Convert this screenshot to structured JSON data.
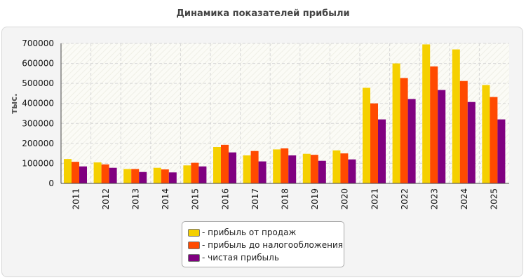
{
  "chart_data": {
    "type": "bar",
    "title": "Динамика показателей прибыли",
    "ylabel": "тыс.",
    "xlabel": "",
    "ylim": [
      0,
      700000
    ],
    "yticks": [
      0,
      100000,
      200000,
      300000,
      400000,
      500000,
      600000,
      700000
    ],
    "grid": true,
    "legend_position": "bottom-center",
    "categories": [
      "2011",
      "2012",
      "2013",
      "2014",
      "2015",
      "2016",
      "2017",
      "2018",
      "2019",
      "2020",
      "2021",
      "2022",
      "2023",
      "2024",
      "2025"
    ],
    "series": [
      {
        "name": "- прибыль от продаж",
        "color": "#f5d000",
        "values": [
          122000,
          105000,
          72000,
          78000,
          90000,
          182000,
          140000,
          170000,
          148000,
          165000,
          478000,
          600000,
          695000,
          670000,
          492000
        ]
      },
      {
        "name": "- прибыль до налогообложения",
        "color": "#ff4a00",
        "values": [
          108000,
          95000,
          72000,
          70000,
          103000,
          193000,
          162000,
          175000,
          143000,
          150000,
          400000,
          527000,
          585000,
          512000,
          432000
        ]
      },
      {
        "name": "- чистая прибыль",
        "color": "#800080",
        "values": [
          85000,
          78000,
          57000,
          55000,
          85000,
          155000,
          110000,
          140000,
          113000,
          120000,
          320000,
          422000,
          467000,
          407000,
          320000
        ]
      }
    ]
  }
}
